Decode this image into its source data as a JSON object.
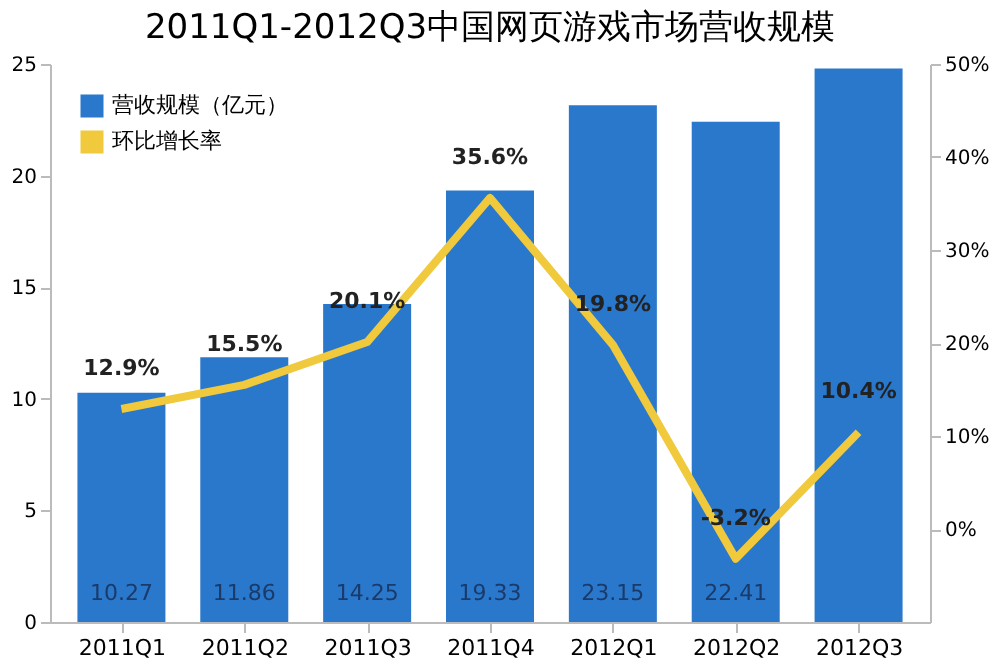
{
  "chart_data": {
    "type": "bar",
    "title": "2011Q1-2012Q3中国网页游戏市场营收规模",
    "categories": [
      "2011Q1",
      "2011Q2",
      "2011Q3",
      "2011Q4",
      "2012Q1",
      "2012Q2",
      "2012Q3"
    ],
    "series": [
      {
        "name": "营收规模（亿元）",
        "color": "#2a78cc",
        "values": [
          10.27,
          11.86,
          14.25,
          19.33,
          23.15,
          22.41,
          24.8
        ],
        "value_labels": [
          "10.27",
          "11.86",
          "14.25",
          "19.33",
          "23.15",
          "22.41",
          null
        ]
      },
      {
        "name": "环比增长率",
        "type": "line",
        "axis": "y2",
        "color": "#f0c93c",
        "values": [
          12.9,
          15.5,
          20.1,
          35.6,
          19.8,
          -3.2,
          10.4
        ],
        "value_labels": [
          "12.9%",
          "15.5%",
          "20.1%",
          "35.6%",
          "19.8%",
          "-3.2%",
          "10.4%"
        ]
      }
    ],
    "ylim": [
      0,
      25
    ],
    "yticks": [
      0,
      5,
      10,
      15,
      20,
      25
    ],
    "y2lim": [
      -10,
      50
    ],
    "y2ticks": [
      {
        "value": 0,
        "label": "0%"
      },
      {
        "value": 10,
        "label": "10%"
      },
      {
        "value": 20,
        "label": "20%"
      },
      {
        "value": 30,
        "label": "30%"
      },
      {
        "value": 40,
        "label": "40%"
      },
      {
        "value": 50,
        "label": "50%"
      }
    ],
    "grid": false,
    "legend": "top left"
  }
}
